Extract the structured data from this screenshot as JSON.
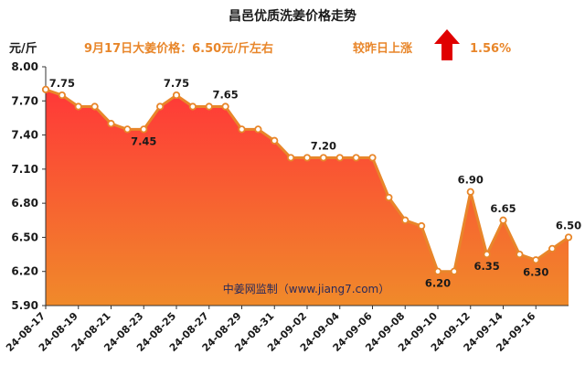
{
  "chart_data": {
    "type": "area",
    "title": "昌邑优质洗姜价格走势",
    "ylabel": "元/斤",
    "annotation_price": "9月17日大姜价格：6.50元/斤左右",
    "annotation_change": "较昨日上涨",
    "annotation_change_value": "1.56%",
    "watermark": "中姜网监制（www.jiang7.com）",
    "ylim": [
      5.9,
      8.0
    ],
    "yticks": [
      "8.00",
      "7.70",
      "7.40",
      "7.10",
      "6.80",
      "6.50",
      "6.20",
      "5.90"
    ],
    "xticks": [
      "24-08-17",
      "24-08-19",
      "24-08-21",
      "24-08-23",
      "24-08-25",
      "24-08-27",
      "24-08-29",
      "24-08-31",
      "24-09-02",
      "24-09-04",
      "24-09-06",
      "24-09-08",
      "24-09-10",
      "24-09-12",
      "24-09-14",
      "24-09-16"
    ],
    "values": [
      7.8,
      7.75,
      7.65,
      7.65,
      7.5,
      7.45,
      7.45,
      7.65,
      7.75,
      7.65,
      7.65,
      7.65,
      7.45,
      7.45,
      7.35,
      7.2,
      7.2,
      7.2,
      7.2,
      7.2,
      7.2,
      6.85,
      6.65,
      6.6,
      6.2,
      6.2,
      6.9,
      6.35,
      6.65,
      6.35,
      6.3,
      6.4,
      6.5
    ],
    "data_labels": [
      {
        "index": 1,
        "text": "7.75"
      },
      {
        "index": 6,
        "text": "7.45"
      },
      {
        "index": 8,
        "text": "7.75"
      },
      {
        "index": 11,
        "text": "7.65"
      },
      {
        "index": 17,
        "text": "7.20"
      },
      {
        "index": 24,
        "text": "6.20"
      },
      {
        "index": 26,
        "text": "6.90"
      },
      {
        "index": 27,
        "text": "6.35"
      },
      {
        "index": 28,
        "text": "6.65"
      },
      {
        "index": 30,
        "text": "6.30"
      },
      {
        "index": 32,
        "text": "6.50"
      }
    ],
    "colors": {
      "line": "#e8862a",
      "fill_top": "#ff3b3b",
      "fill_bottom": "#f08a2a",
      "arrow": "#e00000"
    },
    "grid": false
  }
}
